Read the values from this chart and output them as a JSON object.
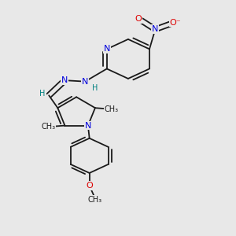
{
  "bg_color": "#e8e8e8",
  "bond_color": "#1a1a1a",
  "atom_colors": {
    "N": "#0000dd",
    "O": "#dd0000",
    "C": "#1a1a1a",
    "H": "#008080"
  },
  "figsize": [
    3.0,
    3.0
  ],
  "dpi": 100,
  "xlim": [
    0.1,
    0.9
  ],
  "ylim": [
    0.0,
    1.0
  ]
}
